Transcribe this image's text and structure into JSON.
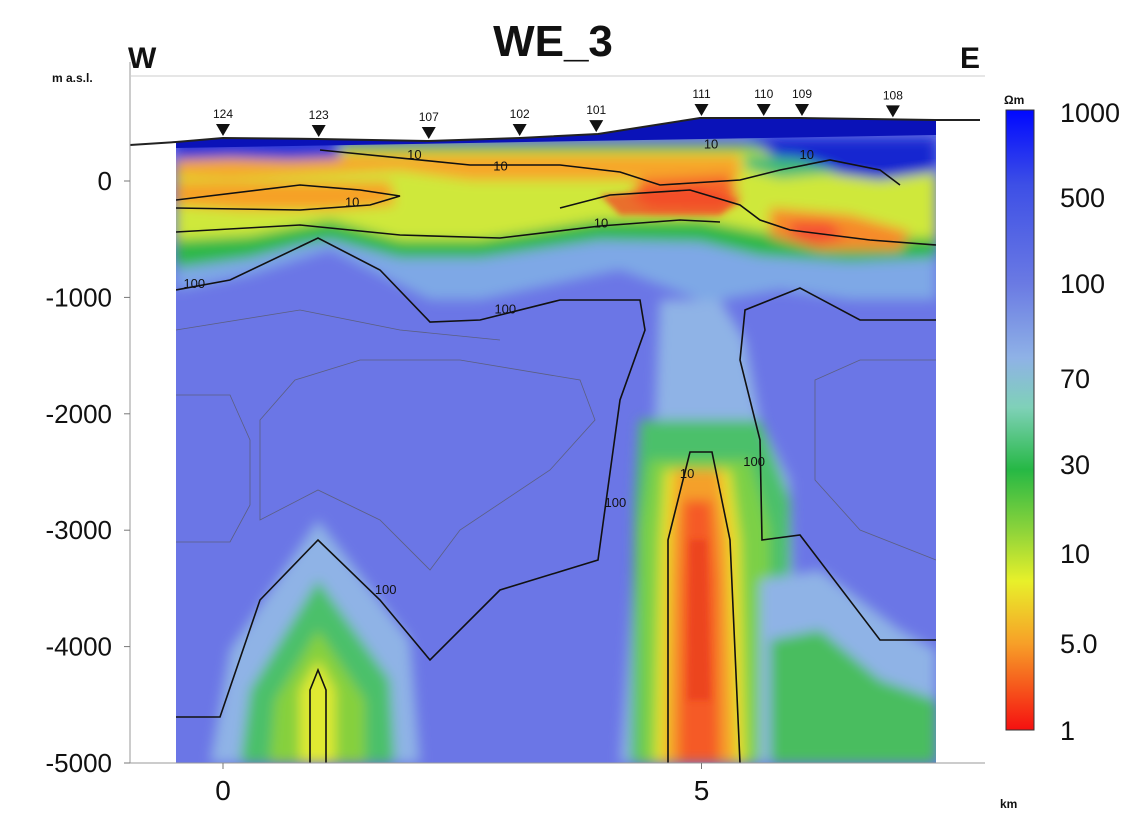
{
  "chart_data": {
    "type": "heatmap",
    "title": "WE_3",
    "direction_left": "W",
    "direction_right": "E",
    "ylabel": "m a.s.l.",
    "xlabel": "km",
    "xlim": [
      -0.5,
      7.5
    ],
    "ylim": [
      -5000,
      700
    ],
    "x_ticks": [
      0,
      5
    ],
    "y_ticks": [
      0,
      -1000,
      -2000,
      -3000,
      -4000,
      -5000
    ],
    "stations": [
      {
        "name": "124",
        "x": 0.0
      },
      {
        "name": "123",
        "x": 1.0
      },
      {
        "name": "107",
        "x": 2.15
      },
      {
        "name": "102",
        "x": 3.1
      },
      {
        "name": "101",
        "x": 3.9
      },
      {
        "name": "111",
        "x": 5.0
      },
      {
        "name": "110",
        "x": 5.65
      },
      {
        "name": "109",
        "x": 6.05
      },
      {
        "name": "108",
        "x": 7.0
      }
    ],
    "colorbar": {
      "unit": "Ωm",
      "labels": [
        "1000",
        "500",
        "100",
        "70",
        "30",
        "10",
        "5.0",
        "1"
      ]
    },
    "contour_labels": [
      {
        "text": "100",
        "x": -0.3,
        "y": -920
      },
      {
        "text": "100",
        "x": 2.95,
        "y": -1140
      },
      {
        "text": "100",
        "x": 4.1,
        "y": -2800
      },
      {
        "text": "100",
        "x": 5.55,
        "y": -2450
      },
      {
        "text": "100",
        "x": 1.7,
        "y": -3550
      },
      {
        "text": "10",
        "x": 2.0,
        "y": 190
      },
      {
        "text": "10",
        "x": 2.9,
        "y": 90
      },
      {
        "text": "10",
        "x": 1.35,
        "y": -220
      },
      {
        "text": "10",
        "x": 3.95,
        "y": -400
      },
      {
        "text": "10",
        "x": 5.1,
        "y": 280
      },
      {
        "text": "10",
        "x": 6.1,
        "y": 190
      },
      {
        "text": "10",
        "x": 4.85,
        "y": -2550
      }
    ]
  }
}
